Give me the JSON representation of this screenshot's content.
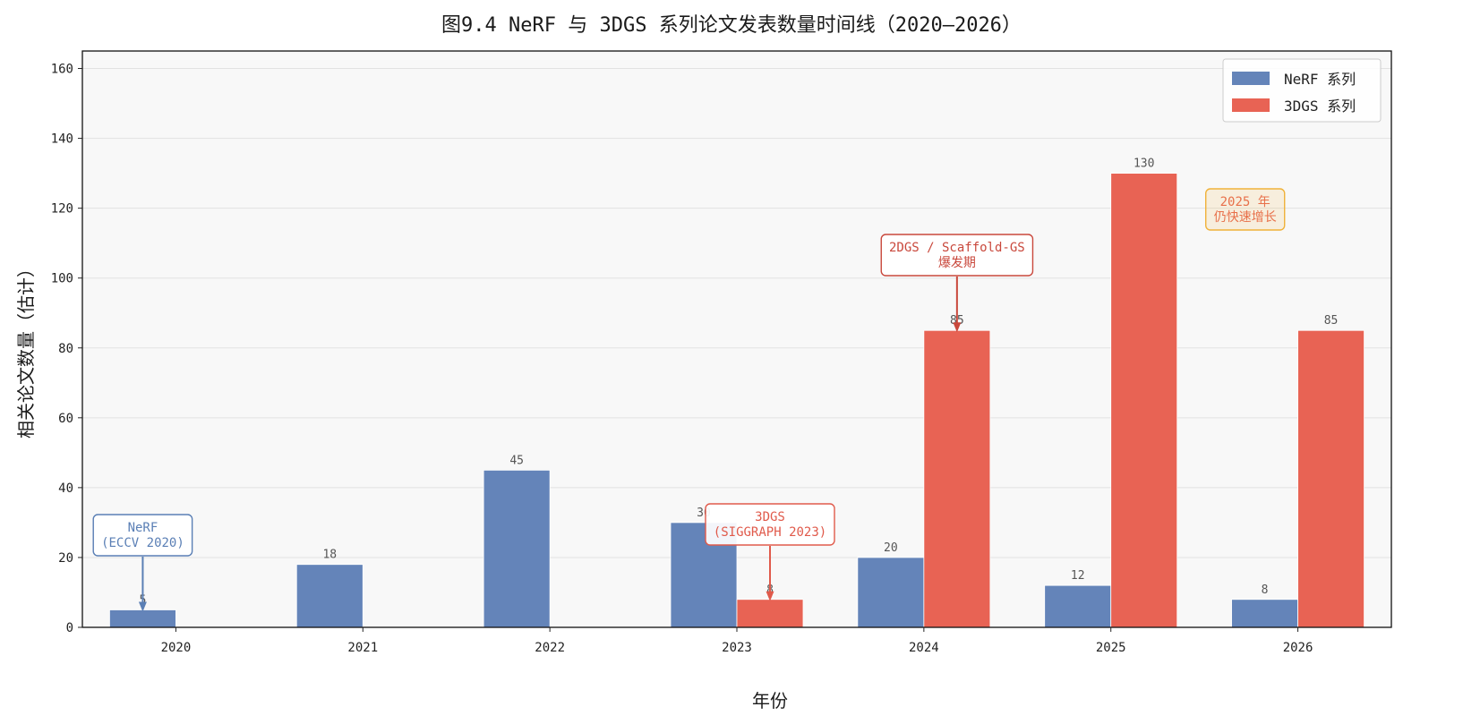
{
  "chart_data": {
    "type": "bar",
    "title": "图9.4  NeRF 与 3DGS 系列论文发表数量时间线（2020—2026）",
    "xlabel": "年份",
    "ylabel": "相关论文数量（估计）",
    "categories": [
      "2020",
      "2021",
      "2022",
      "2023",
      "2024",
      "2025",
      "2026"
    ],
    "series": [
      {
        "name": "NeRF 系列",
        "color": "#6484b9",
        "values": [
          5,
          18,
          45,
          30,
          20,
          12,
          8
        ]
      },
      {
        "name": "3DGS 系列",
        "color": "#e86354",
        "values": [
          0,
          0,
          0,
          8,
          85,
          130,
          85
        ]
      }
    ],
    "ylim": [
      0,
      165
    ],
    "yticks": [
      0,
      20,
      40,
      60,
      80,
      100,
      120,
      140,
      160
    ],
    "grid": true,
    "legend": "top-right",
    "annotations": [
      {
        "lines": [
          "NeRF",
          "(ECCV 2020)"
        ],
        "category": "2020",
        "series": 0,
        "value": 5,
        "color": "#5a7fb5",
        "arrow": true
      },
      {
        "lines": [
          "3DGS",
          "(SIGGRAPH 2023)"
        ],
        "category": "2023",
        "series": 1,
        "value": 8,
        "color": "#e05a4b",
        "arrow": true
      },
      {
        "lines": [
          "2DGS / Scaffold-GS",
          "爆发期"
        ],
        "category": "2024",
        "series": 1,
        "value": 85,
        "color": "#c9483c",
        "arrow": true
      },
      {
        "lines": [
          "2025 年",
          "仍快速增长"
        ],
        "category": "2025",
        "series": 1,
        "value": 130,
        "color": "#f0b23a",
        "arrow": false
      }
    ]
  }
}
